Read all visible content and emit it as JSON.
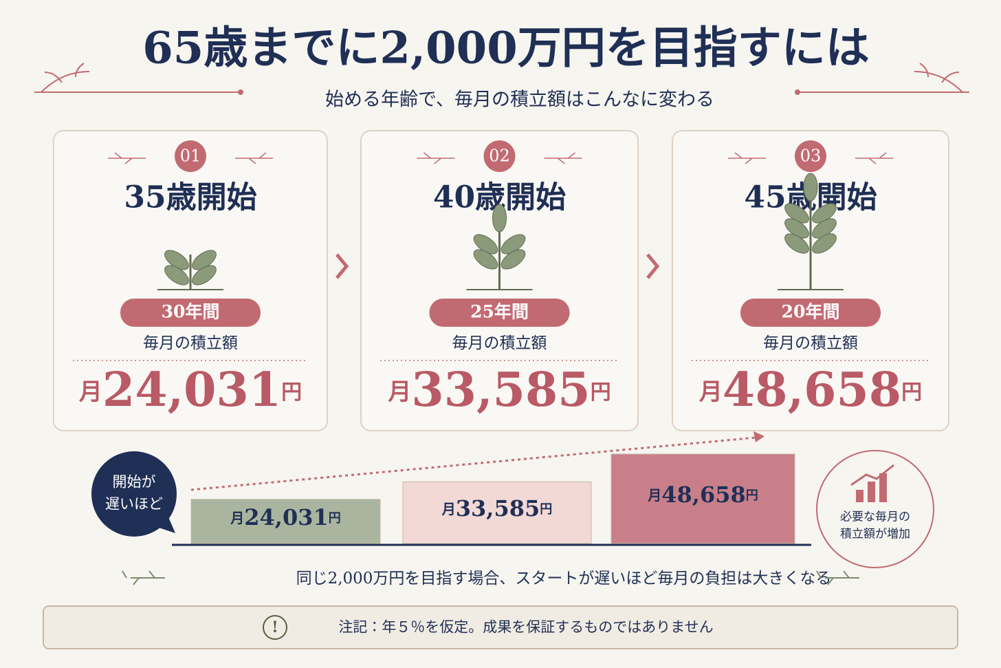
{
  "header": {
    "title": "65歳までに2,000万円を目指すには",
    "subtitle": "始める年齢で、毎月の積立額はこんなに変わる"
  },
  "cards": [
    {
      "number": "01",
      "age": "35歳開始",
      "years": "30年間",
      "label": "毎月の積立額"
    },
    {
      "number": "02",
      "age": "40歳開始",
      "years": "25年間",
      "label": "毎月の積立額"
    },
    {
      "number": "03",
      "age": "45歳開始",
      "years": "20年間",
      "label": "毎月の積立額"
    }
  ],
  "amount": {
    "prefix": "月",
    "suffix": "円"
  },
  "comparison": {
    "bubble": [
      "開始が",
      "遅いほど"
    ],
    "values": [
      24031,
      33585,
      48658
    ],
    "value_labels": [
      "24,031",
      "33,585",
      "48,658"
    ],
    "colors": [
      "#aab59f",
      "#f2d9d6",
      "#c97f89"
    ],
    "note": [
      "必要な毎月の",
      "積立額が増加"
    ]
  },
  "conclusion": "同じ2,000万円を目指す場合、スタートが遅いほど毎月の負担は大きくなる",
  "footnote": {
    "icon": "!",
    "text": "注記：年５％を仮定。成果を保証するものではありません"
  }
}
